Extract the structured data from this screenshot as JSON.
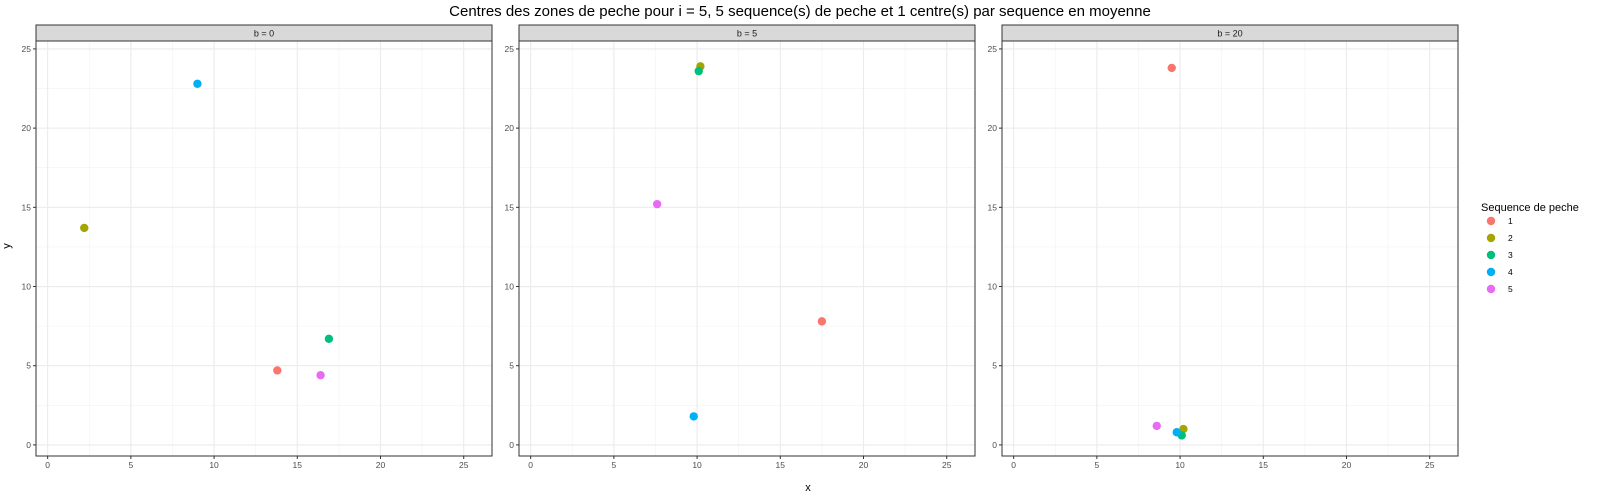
{
  "chart_data": {
    "type": "scatter",
    "title": "Centres des zones de peche pour i = 5, 5 sequence(s) de peche et 1 centre(s) par sequence en moyenne",
    "xlabel": "x",
    "ylabel": "y",
    "xlim": [
      -0.7,
      26.7
    ],
    "ylim": [
      -0.7,
      25.5
    ],
    "xticks": [
      0,
      5,
      10,
      15,
      20,
      25
    ],
    "yticks": [
      0,
      5,
      10,
      15,
      20,
      25
    ],
    "grid": true,
    "legend": {
      "title": "Sequence de peche",
      "position": "right",
      "entries": [
        {
          "label": "1",
          "color": "#F8766D"
        },
        {
          "label": "2",
          "color": "#A3A500"
        },
        {
          "label": "3",
          "color": "#00BF7D"
        },
        {
          "label": "4",
          "color": "#00B0F6"
        },
        {
          "label": "5",
          "color": "#E76BF3"
        }
      ]
    },
    "panels": [
      {
        "label": "b = 0",
        "points": [
          {
            "series": "1",
            "x": 13.8,
            "y": 4.7
          },
          {
            "series": "2",
            "x": 2.2,
            "y": 13.7
          },
          {
            "series": "3",
            "x": 16.9,
            "y": 6.7
          },
          {
            "series": "4",
            "x": 9.0,
            "y": 22.8
          },
          {
            "series": "5",
            "x": 16.4,
            "y": 4.4
          }
        ]
      },
      {
        "label": "b = 5",
        "points": [
          {
            "series": "1",
            "x": 17.5,
            "y": 7.8
          },
          {
            "series": "2",
            "x": 10.2,
            "y": 23.9
          },
          {
            "series": "3",
            "x": 10.1,
            "y": 23.6
          },
          {
            "series": "4",
            "x": 9.8,
            "y": 1.8
          },
          {
            "series": "5",
            "x": 7.6,
            "y": 15.2
          }
        ]
      },
      {
        "label": "b = 20",
        "points": [
          {
            "series": "1",
            "x": 9.5,
            "y": 23.8
          },
          {
            "series": "2",
            "x": 10.2,
            "y": 1.0
          },
          {
            "series": "3",
            "x": 10.1,
            "y": 0.6
          },
          {
            "series": "4",
            "x": 9.8,
            "y": 0.8
          },
          {
            "series": "5",
            "x": 8.6,
            "y": 1.2
          }
        ]
      }
    ]
  }
}
